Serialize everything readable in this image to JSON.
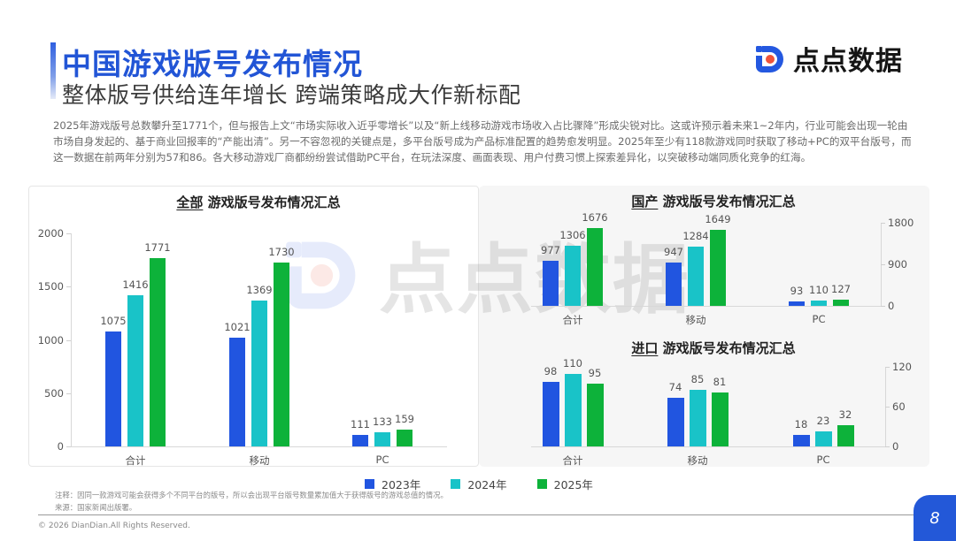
{
  "header": {
    "title": "中国游戏版号发布情况",
    "subtitle": "整体版号供给连年增长 跨端策略成大作新标配",
    "logo_text": "点点数据",
    "logo_icon": "diandian-logo-icon"
  },
  "intro": "2025年游戏版号总数攀升至1771个，但与报告上文“市场实际收入近乎零增长”以及“新上线移动游戏市场收入占比骤降”形成尖锐对比。这或许预示着未来1~2年内，行业可能会出现一轮由市场自身发起的、基于商业回报率的“产能出清”。另一不容忽视的关键点是，多平台版号成为产品标准配置的趋势愈发明显。2025年至少有118款游戏同时获取了移动+PC的双平台版号，而这一数据在前两年分别为57和86。各大移动游戏厂商都纷纷尝试借助PC平台，在玩法深度、画面表现、用户付费习惯上探索差异化，以突破移动端同质化竞争的红海。",
  "colors": {
    "accent": "#2255d6",
    "series_2023": "#2155e0",
    "series_2024": "#19c3c8",
    "series_2025": "#0db23a"
  },
  "watermark": "点点数据",
  "legend": [
    {
      "label": "2023年",
      "color": "#2155e0"
    },
    {
      "label": "2024年",
      "color": "#19c3c8"
    },
    {
      "label": "2025年",
      "color": "#0db23a"
    }
  ],
  "note_line1": "注释：因同一款游戏可能会获得多个不同平台的版号，所以会出现平台版号数量累加值大于获得版号的游戏总值的情况。",
  "note_line2": "来源：国家新闻出版署。",
  "copyright": "© 2026 DianDian.All Rights Reserved.",
  "page_number": "8",
  "chart_data": [
    {
      "type": "bar",
      "title_prefix": "全部",
      "title": "游戏版号发布情况汇总",
      "categories": [
        "合计",
        "移动",
        "PC"
      ],
      "series": [
        {
          "name": "2023年",
          "values": [
            1075,
            1021,
            111
          ]
        },
        {
          "name": "2024年",
          "values": [
            1416,
            1369,
            133
          ]
        },
        {
          "name": "2025年",
          "values": [
            1771,
            1730,
            159
          ]
        }
      ],
      "yticks": [
        "2000",
        "1500",
        "1000",
        "500",
        "0"
      ],
      "ylim": [
        0,
        2000
      ],
      "y_axis_position": "left",
      "grid": false,
      "legend_position": "bottom"
    },
    {
      "type": "bar",
      "title_prefix": "国产",
      "title": "游戏版号发布情况汇总",
      "categories": [
        "合计",
        "移动",
        "PC"
      ],
      "series": [
        {
          "name": "2023年",
          "values": [
            977,
            947,
            93
          ]
        },
        {
          "name": "2024年",
          "values": [
            1306,
            1284,
            110
          ]
        },
        {
          "name": "2025年",
          "values": [
            1676,
            1649,
            127
          ]
        }
      ],
      "yticks": [
        "1800",
        "900",
        "0"
      ],
      "ylim": [
        0,
        1800
      ],
      "y_axis_position": "right",
      "grid": false,
      "legend_position": "bottom"
    },
    {
      "type": "bar",
      "title_prefix": "进口",
      "title": "游戏版号发布情况汇总",
      "categories": [
        "合计",
        "移动",
        "PC"
      ],
      "series": [
        {
          "name": "2023年",
          "values": [
            98,
            74,
            18
          ]
        },
        {
          "name": "2024年",
          "values": [
            110,
            85,
            23
          ]
        },
        {
          "name": "2025年",
          "values": [
            95,
            81,
            32
          ]
        }
      ],
      "yticks": [
        "120",
        "60",
        "0"
      ],
      "ylim": [
        0,
        120
      ],
      "y_axis_position": "right",
      "grid": false,
      "legend_position": "bottom"
    }
  ]
}
